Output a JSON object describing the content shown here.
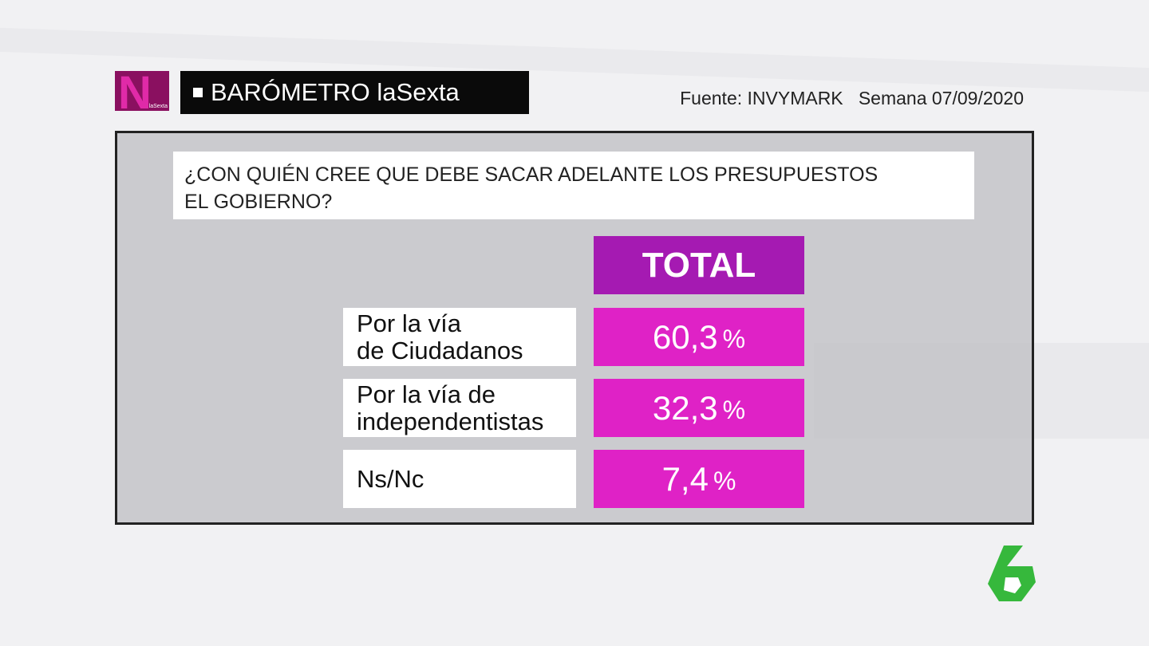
{
  "header": {
    "logo": {
      "letter": "N",
      "brand": "laSexta"
    },
    "title": "BARÓMETRO laSexta",
    "source": "Fuente: INVYMARK",
    "week": "Semana 07/09/2020"
  },
  "question": "¿CON QUIÉN CREE QUE DEBE SACAR ADELANTE LOS PRESUPUESTOS\nEL GOBIERNO?",
  "table": {
    "column": "TOTAL",
    "rows": [
      {
        "label": "Por la vía\nde Ciudadanos",
        "value": "60,3",
        "unit": "%"
      },
      {
        "label": "Por la vía de\nindependentistas",
        "value": "32,3",
        "unit": "%"
      },
      {
        "label": "Ns/Nc",
        "value": "7,4",
        "unit": "%"
      }
    ]
  }
}
